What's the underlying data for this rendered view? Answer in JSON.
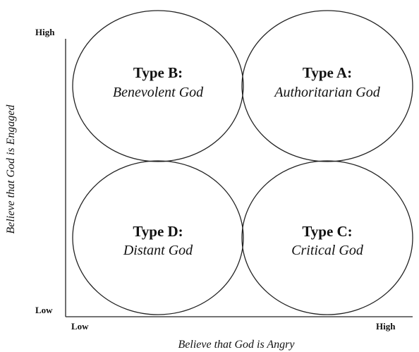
{
  "y_axis": {
    "title": "Believe that God is Engaged",
    "high": "High",
    "low": "Low"
  },
  "x_axis": {
    "title": "Believe that God is Angry",
    "low": "Low",
    "high": "High"
  },
  "quadrants": {
    "type_b": {
      "title": "Type B:",
      "desc": "Benevolent God"
    },
    "type_a": {
      "title": "Type A:",
      "desc": "Authoritarian God"
    },
    "type_d": {
      "title": "Type D:",
      "desc": "Distant God"
    },
    "type_c": {
      "title": "Type C:",
      "desc": "Critical God"
    }
  }
}
